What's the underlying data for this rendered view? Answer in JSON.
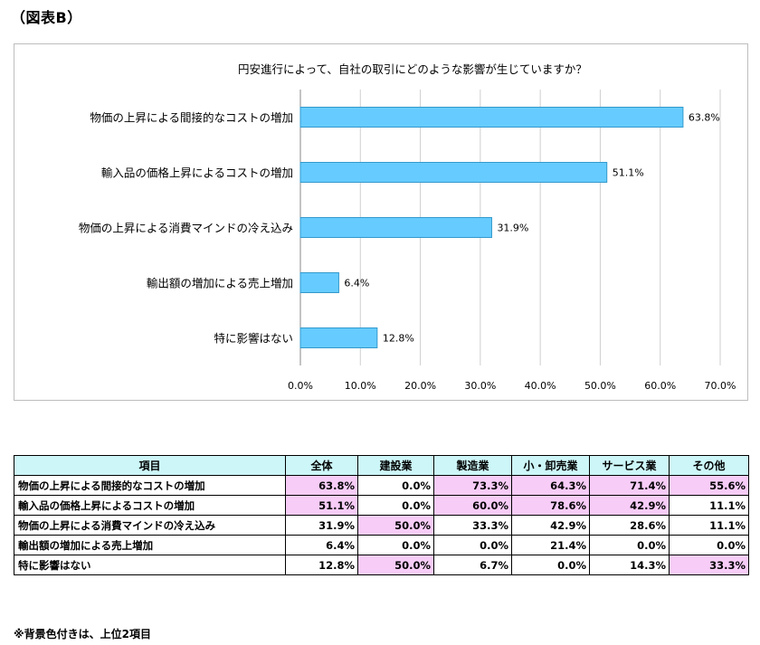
{
  "figure_label": "（図表B）",
  "chart_data": {
    "type": "bar",
    "orientation": "horizontal",
    "title": "円安進行によって、自社の取引にどのような影響が生じていますか？",
    "categories": [
      "物価の上昇による間接的なコストの増加",
      "輸入品の価格上昇によるコストの増加",
      "物価の上昇による消費マインドの冷え込み",
      "輸出額の増加による売上増加",
      "特に影響はない"
    ],
    "values": [
      63.8,
      51.1,
      31.9,
      6.4,
      12.8
    ],
    "data_labels": [
      "63.8%",
      "51.1%",
      "31.9%",
      "6.4%",
      "12.8%"
    ],
    "xlim": [
      0,
      70
    ],
    "x_ticks": [
      0,
      10,
      20,
      30,
      40,
      50,
      60,
      70
    ],
    "x_tick_labels": [
      "0.0%",
      "10.0%",
      "20.0%",
      "30.0%",
      "40.0%",
      "50.0%",
      "60.0%",
      "70.0%"
    ],
    "grid": "vertical",
    "bar_color": "#66ccff",
    "bar_edge_color": "#3399cc"
  },
  "table": {
    "headers": [
      "項目",
      "全体",
      "建設業",
      "製造業",
      "小・卸売業",
      "サービス業",
      "その他"
    ],
    "rows": [
      {
        "label": "物価の上昇による間接的なコストの増加",
        "values": [
          "63.8%",
          "0.0%",
          "73.3%",
          "64.3%",
          "71.4%",
          "55.6%"
        ],
        "highlight": [
          true,
          false,
          true,
          true,
          true,
          true
        ]
      },
      {
        "label": "輸入品の価格上昇によるコストの増加",
        "values": [
          "51.1%",
          "0.0%",
          "60.0%",
          "78.6%",
          "42.9%",
          "11.1%"
        ],
        "highlight": [
          true,
          false,
          true,
          true,
          true,
          false
        ]
      },
      {
        "label": "物価の上昇による消費マインドの冷え込み",
        "values": [
          "31.9%",
          "50.0%",
          "33.3%",
          "42.9%",
          "28.6%",
          "11.1%"
        ],
        "highlight": [
          false,
          true,
          false,
          false,
          false,
          false
        ]
      },
      {
        "label": "輸出額の増加による売上増加",
        "values": [
          "6.4%",
          "0.0%",
          "0.0%",
          "21.4%",
          "0.0%",
          "0.0%"
        ],
        "highlight": [
          false,
          false,
          false,
          false,
          false,
          false
        ]
      },
      {
        "label": "特に影響はない",
        "values": [
          "12.8%",
          "50.0%",
          "6.7%",
          "0.0%",
          "14.3%",
          "33.3%"
        ],
        "highlight": [
          false,
          true,
          false,
          false,
          false,
          true
        ]
      }
    ],
    "highlight_color": "#f7ccf7",
    "header_color": "#cdf6f8"
  },
  "note": "※背景色付きは、上位2項目"
}
